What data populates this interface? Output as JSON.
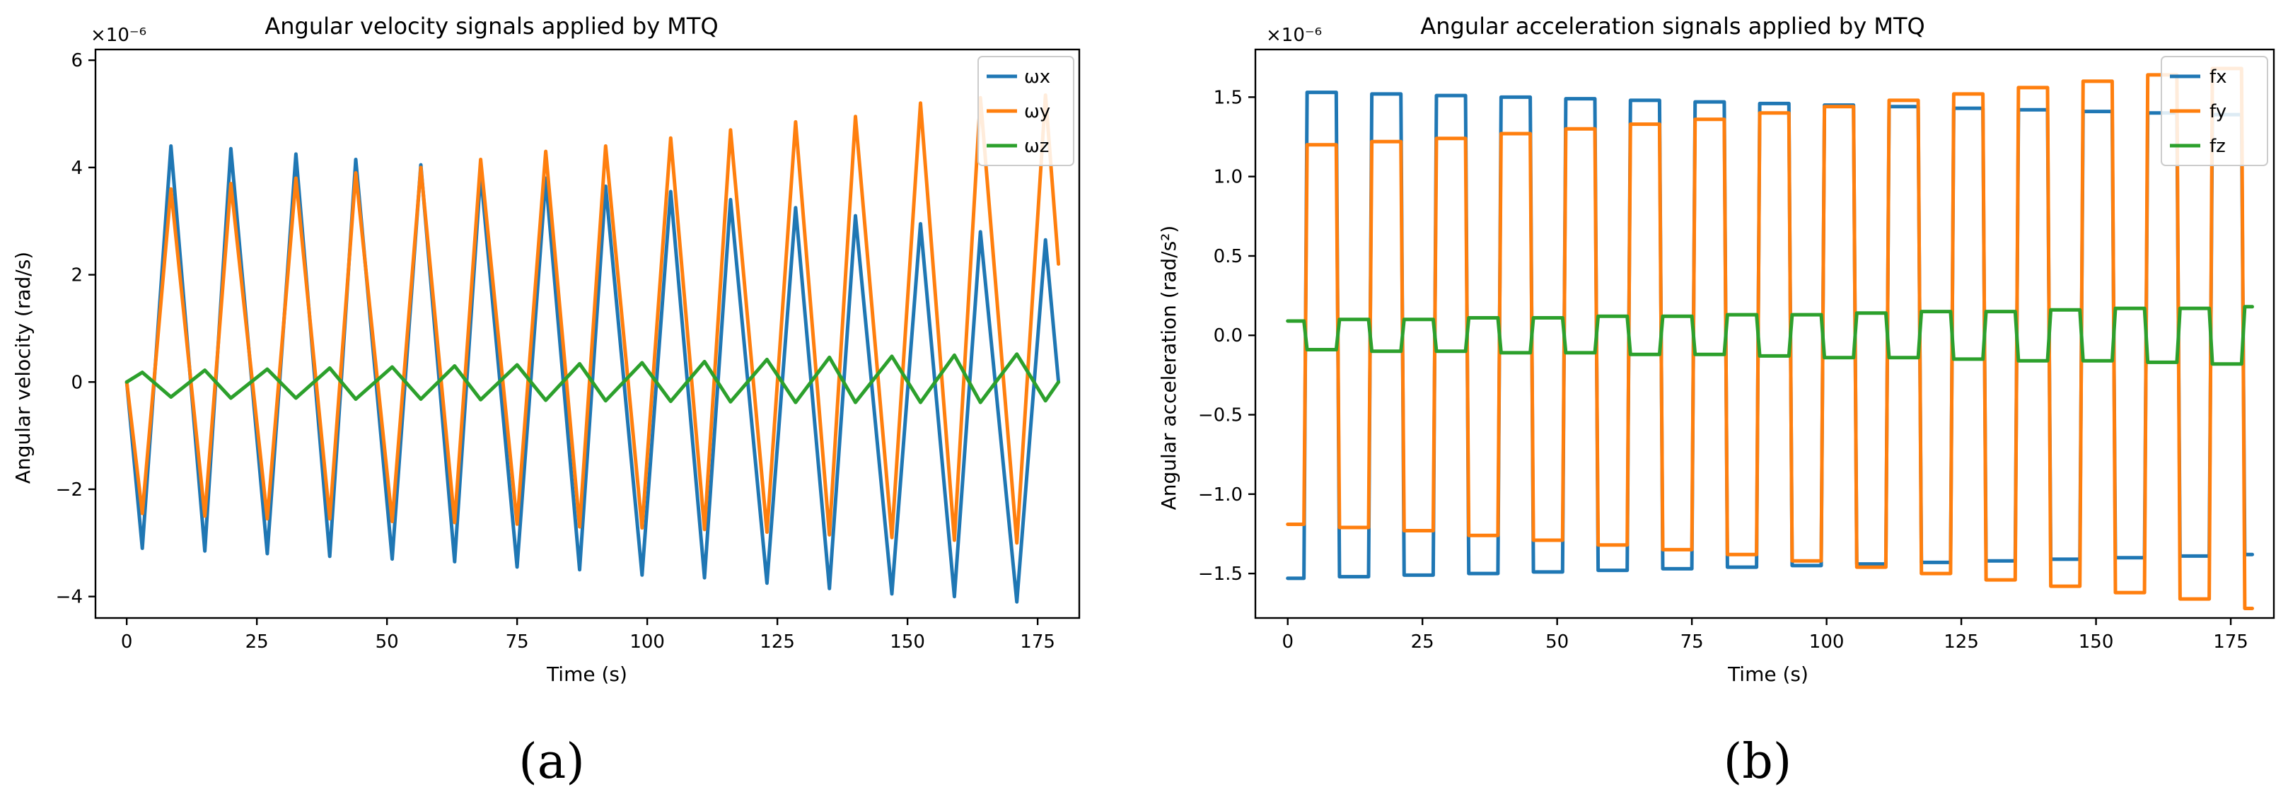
{
  "figure": {
    "panel_labels": [
      "(a)",
      "(b)"
    ]
  },
  "chart_data": [
    {
      "type": "line",
      "title": "Angular velocity signals applied by MTQ",
      "xlabel": "Time (s)",
      "ylabel": "Angular velocity (rad/s)",
      "multiplier_text": "×10⁻⁶",
      "xlim": [
        -6,
        183
      ],
      "ylim": [
        -4.4,
        6.2
      ],
      "xticks": [
        0,
        25,
        50,
        75,
        100,
        125,
        150,
        175
      ],
      "xtick_labels": [
        "0",
        "25",
        "50",
        "75",
        "100",
        "125",
        "150",
        "175"
      ],
      "yticks": [
        -4,
        -2,
        0,
        2,
        4,
        6
      ],
      "ytick_labels": [
        "−4",
        "−2",
        "0",
        "2",
        "4",
        "6"
      ],
      "legend_position": "top-right",
      "period_s": 12,
      "x": [
        0,
        3,
        8.5,
        15,
        20,
        27,
        32.5,
        39,
        44,
        51,
        56.5,
        63,
        68,
        75,
        80.5,
        87,
        92,
        99,
        104.5,
        111,
        116,
        123,
        128.5,
        135,
        140,
        147,
        152.5,
        159,
        164,
        171,
        176.5,
        179
      ],
      "series": [
        {
          "name": "ωx",
          "color": "#1f77b4",
          "values": [
            0,
            -3.1,
            4.4,
            -3.15,
            4.35,
            -3.2,
            4.25,
            -3.25,
            4.15,
            -3.3,
            4.05,
            -3.35,
            3.9,
            -3.45,
            3.8,
            -3.5,
            3.65,
            -3.6,
            3.55,
            -3.65,
            3.4,
            -3.75,
            3.25,
            -3.85,
            3.1,
            -3.95,
            2.95,
            -4.0,
            2.8,
            -4.1,
            2.65,
            0
          ]
        },
        {
          "name": "ωy",
          "color": "#ff7f0e",
          "values": [
            0,
            -2.45,
            3.6,
            -2.5,
            3.7,
            -2.55,
            3.8,
            -2.55,
            3.9,
            -2.6,
            4.0,
            -2.62,
            4.15,
            -2.65,
            4.3,
            -2.7,
            4.4,
            -2.72,
            4.55,
            -2.75,
            4.7,
            -2.8,
            4.85,
            -2.85,
            4.95,
            -2.9,
            5.2,
            -2.95,
            5.3,
            -3.0,
            5.35,
            2.2
          ]
        },
        {
          "name": "ωz",
          "color": "#2ca02c",
          "values": [
            0,
            0.18,
            -0.28,
            0.22,
            -0.3,
            0.24,
            -0.3,
            0.26,
            -0.32,
            0.28,
            -0.32,
            0.3,
            -0.33,
            0.32,
            -0.34,
            0.34,
            -0.35,
            0.36,
            -0.36,
            0.38,
            -0.37,
            0.42,
            -0.38,
            0.46,
            -0.38,
            0.48,
            -0.38,
            0.5,
            -0.38,
            0.52,
            -0.35,
            0
          ]
        }
      ]
    },
    {
      "type": "line",
      "title": "Angular acceleration signals applied by MTQ",
      "xlabel": "Time (s)",
      "ylabel": "Angular acceleration (rad/s²)",
      "multiplier_text": "×10⁻⁶",
      "xlim": [
        -6,
        183
      ],
      "ylim": [
        -1.78,
        1.8
      ],
      "xticks": [
        0,
        25,
        50,
        75,
        100,
        125,
        150,
        175
      ],
      "xtick_labels": [
        "0",
        "25",
        "50",
        "75",
        "100",
        "125",
        "150",
        "175"
      ],
      "yticks": [
        -1.5,
        -1.0,
        -0.5,
        0.0,
        0.5,
        1.0,
        1.5
      ],
      "ytick_labels": [
        "−1.5",
        "−1.0",
        "−0.5",
        "0.0",
        "0.5",
        "1.0",
        "1.5"
      ],
      "legend_position": "top-right",
      "period_s": 12,
      "first_half_period_end_s": 3,
      "t_end_s": 179,
      "series": [
        {
          "name": "fx",
          "color": "#1f77b4",
          "amplitudes": [
            1.53,
            1.53,
            1.52,
            1.52,
            1.51,
            1.51,
            1.5,
            1.5,
            1.49,
            1.49,
            1.48,
            1.48,
            1.47,
            1.47,
            1.46,
            1.46,
            1.45,
            1.45,
            1.44,
            1.44,
            1.43,
            1.43,
            1.42,
            1.42,
            1.41,
            1.41,
            1.4,
            1.4,
            1.39,
            1.39,
            1.38
          ]
        },
        {
          "name": "fy",
          "color": "#ff7f0e",
          "amplitudes": [
            1.19,
            1.2,
            1.21,
            1.22,
            1.23,
            1.24,
            1.26,
            1.27,
            1.29,
            1.3,
            1.32,
            1.33,
            1.35,
            1.36,
            1.38,
            1.4,
            1.42,
            1.44,
            1.46,
            1.48,
            1.5,
            1.52,
            1.54,
            1.56,
            1.58,
            1.6,
            1.62,
            1.64,
            1.66,
            1.68,
            1.72
          ]
        },
        {
          "name": "fz",
          "color": "#2ca02c",
          "amplitudes": [
            0.09,
            0.09,
            0.1,
            0.1,
            0.1,
            0.1,
            0.11,
            0.11,
            0.11,
            0.11,
            0.12,
            0.12,
            0.12,
            0.12,
            0.13,
            0.13,
            0.13,
            0.14,
            0.14,
            0.14,
            0.15,
            0.15,
            0.15,
            0.16,
            0.16,
            0.16,
            0.17,
            0.17,
            0.17,
            0.18,
            0.18
          ]
        }
      ]
    }
  ]
}
